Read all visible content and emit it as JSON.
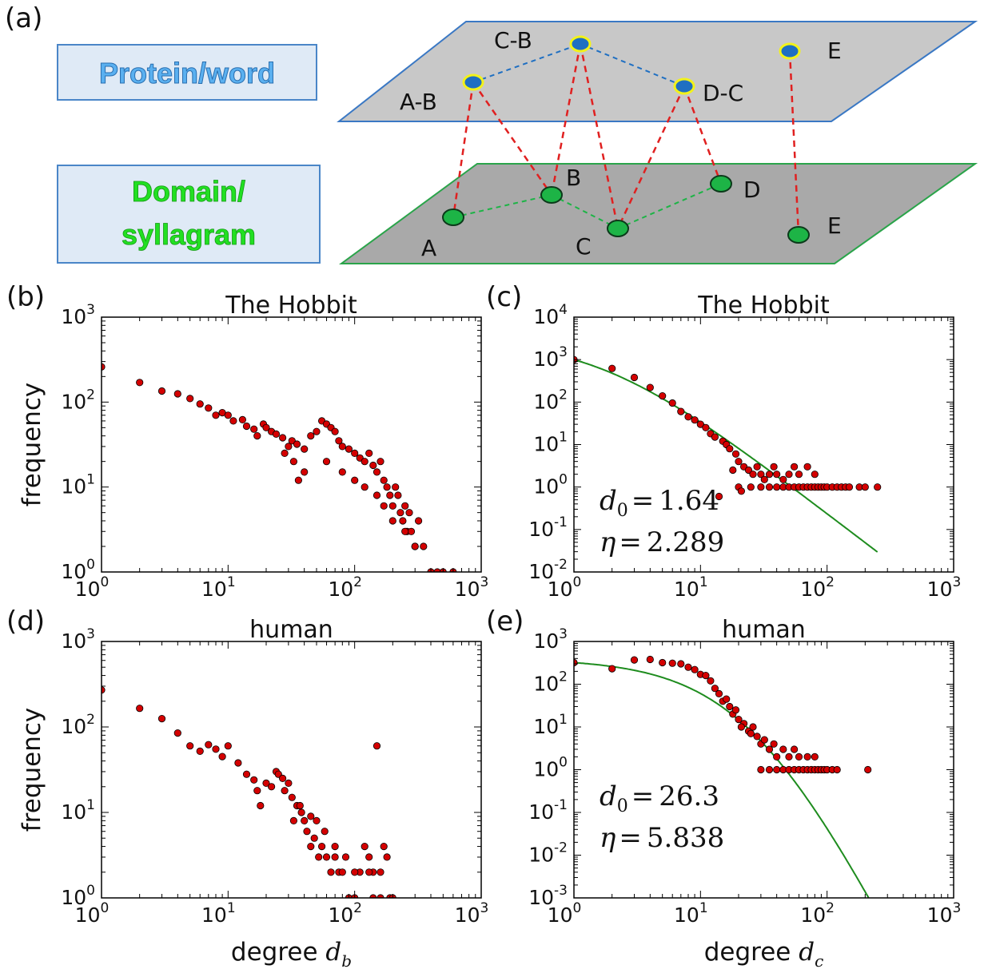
{
  "colors": {
    "top_plane": "#c8c8c8",
    "top_edge": "#3a78c4",
    "bottom_plane": "#a9a9a9",
    "bottom_edge": "#2aa44a",
    "top_node": "#1f6fc2",
    "top_node_ring": "#f2f21a",
    "bottom_node": "#1db446",
    "cross_link": "#e02020",
    "marker": "#d40000",
    "fit_line": "#1e8c1e",
    "box_fill": "#dfeaf6",
    "box_stroke": "#4a86c8",
    "protein_text": "#5ab0f0",
    "domain_text": "#22e022"
  },
  "diagram": {
    "panel_label": "(a)",
    "top_box_label": "Protein/word",
    "bottom_box_label_lines": [
      "Domain/",
      "syllagram"
    ],
    "top_nodes": [
      {
        "id": "AB",
        "label": "A-B"
      },
      {
        "id": "CB",
        "label": "C-B"
      },
      {
        "id": "DC",
        "label": "D-C"
      },
      {
        "id": "E2",
        "label": "E"
      }
    ],
    "bottom_nodes": [
      {
        "id": "A",
        "label": "A"
      },
      {
        "id": "B",
        "label": "B"
      },
      {
        "id": "C",
        "label": "C"
      },
      {
        "id": "D",
        "label": "D"
      },
      {
        "id": "E",
        "label": "E"
      }
    ],
    "top_links": [
      [
        "AB",
        "CB"
      ],
      [
        "CB",
        "DC"
      ]
    ],
    "bottom_links": [
      [
        "A",
        "B"
      ],
      [
        "B",
        "C"
      ],
      [
        "C",
        "D"
      ]
    ],
    "cross_links": [
      [
        "AB",
        "A"
      ],
      [
        "AB",
        "B"
      ],
      [
        "CB",
        "B"
      ],
      [
        "CB",
        "C"
      ],
      [
        "DC",
        "C"
      ],
      [
        "DC",
        "D"
      ],
      [
        "E2",
        "E"
      ]
    ]
  },
  "chart_data": [
    {
      "panel": "(b)",
      "type": "scatter",
      "title": "The Hobbit",
      "xlabel": "",
      "ylabel": "frequency",
      "xscale": "log",
      "yscale": "log",
      "xlim": [
        1,
        1000
      ],
      "ylim": [
        1,
        1000
      ],
      "x_ticks": [
        {
          "base": "10",
          "exp": "0"
        },
        {
          "base": "10",
          "exp": "1"
        },
        {
          "base": "10",
          "exp": "2"
        },
        {
          "base": "10",
          "exp": "3"
        }
      ],
      "y_ticks": [
        {
          "base": "10",
          "exp": "0"
        },
        {
          "base": "10",
          "exp": "1"
        },
        {
          "base": "10",
          "exp": "2"
        },
        {
          "base": "10",
          "exp": "3"
        }
      ],
      "points": [
        [
          1,
          260
        ],
        [
          2,
          170
        ],
        [
          3,
          135
        ],
        [
          4,
          125
        ],
        [
          5,
          110
        ],
        [
          6,
          95
        ],
        [
          7,
          85
        ],
        [
          8,
          70
        ],
        [
          9,
          75
        ],
        [
          10,
          70
        ],
        [
          11,
          60
        ],
        [
          13,
          62
        ],
        [
          14,
          52
        ],
        [
          16,
          48
        ],
        [
          17,
          40
        ],
        [
          19,
          55
        ],
        [
          20,
          50
        ],
        [
          22,
          45
        ],
        [
          24,
          42
        ],
        [
          27,
          38
        ],
        [
          30,
          30
        ],
        [
          32,
          35
        ],
        [
          35,
          32
        ],
        [
          40,
          28
        ],
        [
          45,
          40
        ],
        [
          50,
          45
        ],
        [
          55,
          60
        ],
        [
          60,
          55
        ],
        [
          65,
          50
        ],
        [
          70,
          45
        ],
        [
          75,
          35
        ],
        [
          80,
          30
        ],
        [
          90,
          28
        ],
        [
          100,
          25
        ],
        [
          110,
          22
        ],
        [
          120,
          20
        ],
        [
          130,
          25
        ],
        [
          140,
          18
        ],
        [
          150,
          15
        ],
        [
          160,
          20
        ],
        [
          170,
          12
        ],
        [
          180,
          10
        ],
        [
          190,
          8
        ],
        [
          200,
          6
        ],
        [
          210,
          10
        ],
        [
          220,
          8
        ],
        [
          230,
          5
        ],
        [
          240,
          4
        ],
        [
          250,
          6
        ],
        [
          260,
          3
        ],
        [
          270,
          5
        ],
        [
          280,
          3
        ],
        [
          300,
          2
        ],
        [
          320,
          4
        ],
        [
          350,
          2
        ],
        [
          400,
          1
        ],
        [
          450,
          1
        ],
        [
          500,
          1
        ],
        [
          600,
          1
        ],
        [
          40,
          15
        ],
        [
          60,
          20
        ],
        [
          80,
          15
        ],
        [
          100,
          12
        ],
        [
          120,
          10
        ],
        [
          150,
          8
        ],
        [
          170,
          6
        ],
        [
          200,
          4
        ],
        [
          250,
          3
        ],
        [
          300,
          2
        ],
        [
          33,
          20
        ],
        [
          28,
          25
        ],
        [
          36,
          12
        ]
      ]
    },
    {
      "panel": "(c)",
      "type": "scatter",
      "title": "The Hobbit",
      "xlabel": "",
      "ylabel": "",
      "xscale": "log",
      "yscale": "log",
      "xlim": [
        1,
        1000
      ],
      "ylim": [
        0.01,
        10000
      ],
      "x_ticks": [
        {
          "base": "10",
          "exp": "0"
        },
        {
          "base": "10",
          "exp": "1"
        },
        {
          "base": "10",
          "exp": "2"
        },
        {
          "base": "10",
          "exp": "3"
        }
      ],
      "y_ticks": [
        {
          "base": "10",
          "exp": "-2"
        },
        {
          "base": "10",
          "exp": "-1"
        },
        {
          "base": "10",
          "exp": "0"
        },
        {
          "base": "10",
          "exp": "1"
        },
        {
          "base": "10",
          "exp": "2"
        },
        {
          "base": "10",
          "exp": "3"
        },
        {
          "base": "10",
          "exp": "4"
        }
      ],
      "points": [
        [
          1,
          1000
        ],
        [
          2,
          620
        ],
        [
          3,
          380
        ],
        [
          4,
          220
        ],
        [
          5,
          140
        ],
        [
          6,
          95
        ],
        [
          7,
          60
        ],
        [
          8,
          45
        ],
        [
          9,
          38
        ],
        [
          10,
          30
        ],
        [
          11,
          25
        ],
        [
          12,
          18
        ],
        [
          13,
          15
        ],
        [
          15,
          12
        ],
        [
          16,
          10
        ],
        [
          17,
          8
        ],
        [
          19,
          6
        ],
        [
          20,
          4
        ],
        [
          22,
          3
        ],
        [
          24,
          2.5
        ],
        [
          26,
          2
        ],
        [
          28,
          3
        ],
        [
          30,
          2
        ],
        [
          32,
          1.5
        ],
        [
          35,
          2
        ],
        [
          38,
          3
        ],
        [
          40,
          2
        ],
        [
          45,
          1.5
        ],
        [
          50,
          2
        ],
        [
          55,
          3
        ],
        [
          60,
          2
        ],
        [
          70,
          3
        ],
        [
          80,
          2
        ],
        [
          20,
          1
        ],
        [
          25,
          1
        ],
        [
          30,
          1
        ],
        [
          35,
          1
        ],
        [
          40,
          1
        ],
        [
          45,
          1
        ],
        [
          50,
          1
        ],
        [
          55,
          1
        ],
        [
          60,
          1
        ],
        [
          65,
          1
        ],
        [
          70,
          1
        ],
        [
          75,
          1
        ],
        [
          80,
          1
        ],
        [
          85,
          1
        ],
        [
          90,
          1
        ],
        [
          95,
          1
        ],
        [
          100,
          1
        ],
        [
          110,
          1
        ],
        [
          120,
          1
        ],
        [
          130,
          1
        ],
        [
          140,
          1
        ],
        [
          150,
          1
        ],
        [
          180,
          1
        ],
        [
          200,
          1
        ],
        [
          250,
          1
        ],
        [
          18,
          2.5
        ],
        [
          14,
          0.6
        ],
        [
          21,
          0.8
        ]
      ],
      "fit": {
        "d0": 1.64,
        "eta": 2.289,
        "x_max": 250
      },
      "annotations": [
        {
          "var": "d",
          "sub": "0",
          "eq": "=",
          "value": "1.64"
        },
        {
          "var": "η",
          "sub": "",
          "eq": "=",
          "value": "2.289"
        }
      ]
    },
    {
      "panel": "(d)",
      "type": "scatter",
      "title": "human",
      "xlabel": "degree",
      "xlabel_var": "d",
      "xlabel_sub": "b",
      "ylabel": "frequency",
      "xscale": "log",
      "yscale": "log",
      "xlim": [
        1,
        1000
      ],
      "ylim": [
        1,
        1000
      ],
      "x_ticks": [
        {
          "base": "10",
          "exp": "0"
        },
        {
          "base": "10",
          "exp": "1"
        },
        {
          "base": "10",
          "exp": "2"
        },
        {
          "base": "10",
          "exp": "3"
        }
      ],
      "y_ticks": [
        {
          "base": "10",
          "exp": "0"
        },
        {
          "base": "10",
          "exp": "1"
        },
        {
          "base": "10",
          "exp": "2"
        },
        {
          "base": "10",
          "exp": "3"
        }
      ],
      "points": [
        [
          1,
          270
        ],
        [
          2,
          165
        ],
        [
          3,
          125
        ],
        [
          4,
          85
        ],
        [
          5,
          60
        ],
        [
          6,
          52
        ],
        [
          7,
          62
        ],
        [
          8,
          55
        ],
        [
          9,
          45
        ],
        [
          10,
          60
        ],
        [
          12,
          38
        ],
        [
          14,
          28
        ],
        [
          16,
          24
        ],
        [
          17,
          18
        ],
        [
          18,
          12
        ],
        [
          20,
          22
        ],
        [
          22,
          20
        ],
        [
          24,
          30
        ],
        [
          25,
          28
        ],
        [
          27,
          25
        ],
        [
          28,
          18
        ],
        [
          30,
          22
        ],
        [
          32,
          15
        ],
        [
          35,
          12
        ],
        [
          38,
          10
        ],
        [
          40,
          8
        ],
        [
          42,
          6
        ],
        [
          45,
          9
        ],
        [
          48,
          5
        ],
        [
          50,
          8
        ],
        [
          55,
          4
        ],
        [
          58,
          6
        ],
        [
          60,
          3
        ],
        [
          65,
          2
        ],
        [
          70,
          3
        ],
        [
          75,
          2
        ],
        [
          80,
          2
        ],
        [
          90,
          1
        ],
        [
          100,
          1
        ],
        [
          110,
          2
        ],
        [
          120,
          4
        ],
        [
          130,
          3
        ],
        [
          140,
          2
        ],
        [
          150,
          60
        ],
        [
          160,
          2
        ],
        [
          170,
          4
        ],
        [
          180,
          3
        ],
        [
          190,
          1
        ],
        [
          200,
          1
        ],
        [
          45,
          4
        ],
        [
          70,
          4
        ],
        [
          85,
          3
        ],
        [
          100,
          2
        ],
        [
          130,
          2
        ],
        [
          160,
          1
        ],
        [
          140,
          1
        ],
        [
          37,
          12
        ],
        [
          33,
          8
        ],
        [
          52,
          3
        ]
      ]
    },
    {
      "panel": "(e)",
      "type": "scatter",
      "title": "human",
      "xlabel": "degree",
      "xlabel_var": "d",
      "xlabel_sub": "c",
      "ylabel": "",
      "xscale": "log",
      "yscale": "log",
      "xlim": [
        1,
        1000
      ],
      "ylim": [
        0.001,
        1000
      ],
      "x_ticks": [
        {
          "base": "10",
          "exp": "0"
        },
        {
          "base": "10",
          "exp": "1"
        },
        {
          "base": "10",
          "exp": "2"
        },
        {
          "base": "10",
          "exp": "3"
        }
      ],
      "y_ticks": [
        {
          "base": "10",
          "exp": "-3"
        },
        {
          "base": "10",
          "exp": "-2"
        },
        {
          "base": "10",
          "exp": "-1"
        },
        {
          "base": "10",
          "exp": "0"
        },
        {
          "base": "10",
          "exp": "1"
        },
        {
          "base": "10",
          "exp": "2"
        },
        {
          "base": "10",
          "exp": "3"
        }
      ],
      "points": [
        [
          1,
          320
        ],
        [
          2,
          230
        ],
        [
          3,
          370
        ],
        [
          4,
          380
        ],
        [
          5,
          320
        ],
        [
          6,
          310
        ],
        [
          7,
          300
        ],
        [
          8,
          250
        ],
        [
          9,
          220
        ],
        [
          10,
          170
        ],
        [
          11,
          160
        ],
        [
          12,
          120
        ],
        [
          13,
          80
        ],
        [
          14,
          60
        ],
        [
          15,
          40
        ],
        [
          16,
          45
        ],
        [
          17,
          30
        ],
        [
          18,
          20
        ],
        [
          20,
          15
        ],
        [
          22,
          12
        ],
        [
          24,
          8
        ],
        [
          26,
          10
        ],
        [
          28,
          6
        ],
        [
          30,
          4
        ],
        [
          32,
          5
        ],
        [
          35,
          3
        ],
        [
          38,
          4
        ],
        [
          40,
          2
        ],
        [
          45,
          3
        ],
        [
          50,
          2
        ],
        [
          55,
          3
        ],
        [
          60,
          2
        ],
        [
          70,
          2
        ],
        [
          80,
          2
        ],
        [
          30,
          1
        ],
        [
          35,
          1
        ],
        [
          40,
          1
        ],
        [
          45,
          1
        ],
        [
          50,
          1
        ],
        [
          55,
          1
        ],
        [
          60,
          1
        ],
        [
          65,
          1
        ],
        [
          70,
          1
        ],
        [
          75,
          1
        ],
        [
          80,
          1
        ],
        [
          85,
          1
        ],
        [
          90,
          1
        ],
        [
          95,
          1
        ],
        [
          100,
          1
        ],
        [
          110,
          1
        ],
        [
          120,
          1
        ],
        [
          210,
          1
        ],
        [
          25,
          7
        ],
        [
          21,
          10
        ],
        [
          19,
          25
        ]
      ],
      "fit": {
        "d0": 26.3,
        "eta": 5.838,
        "x_max": 215
      },
      "annotations": [
        {
          "var": "d",
          "sub": "0",
          "eq": "=",
          "value": "26.3"
        },
        {
          "var": "η",
          "sub": "",
          "eq": "=",
          "value": "5.838"
        }
      ]
    }
  ]
}
